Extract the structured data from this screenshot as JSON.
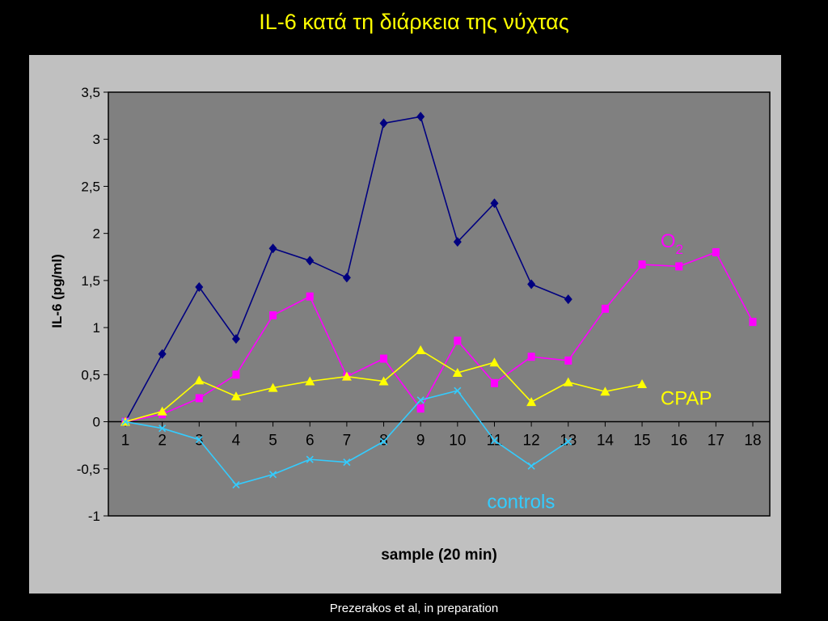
{
  "slide": {
    "title": "IL-6 κατά τη διάρκεια της νύχτας",
    "footer": "Prezerakos et al, in preparation"
  },
  "colors": {
    "background": "#000000",
    "panel": "#C0C0C0",
    "plot_area": "#808080",
    "title": "#FFFF00"
  },
  "chart_data": {
    "type": "line",
    "title": "",
    "xlabel": "sample (20 min)",
    "ylabel": "IL-6 (pg/ml)",
    "x": [
      1,
      2,
      3,
      4,
      5,
      6,
      7,
      8,
      9,
      10,
      11,
      12,
      13,
      14,
      15,
      16,
      17,
      18
    ],
    "xticks": [
      "1",
      "2",
      "3",
      "4",
      "5",
      "6",
      "7",
      "8",
      "9",
      "10",
      "11",
      "12",
      "13",
      "14",
      "15",
      "16",
      "17",
      "18"
    ],
    "ylim": [
      -1,
      3.5
    ],
    "yticks": [
      "3,5",
      "3",
      "2,5",
      "2",
      "1,5",
      "1",
      "0,5",
      "0",
      "-0,5",
      "-1"
    ],
    "ytick_values": [
      3.5,
      3,
      2.5,
      2,
      1.5,
      1,
      0.5,
      0,
      -0.5,
      -1
    ],
    "grid": false,
    "series": [
      {
        "name": "",
        "color": "#000080",
        "marker": "diamond",
        "values": [
          0,
          0.72,
          1.43,
          0.88,
          1.84,
          1.71,
          1.53,
          3.17,
          3.24,
          1.91,
          2.32,
          1.46,
          1.3,
          null,
          null,
          null,
          null,
          null
        ]
      },
      {
        "name": "O2",
        "color": "#FF00FF",
        "marker": "square",
        "values": [
          0,
          0.08,
          0.25,
          0.5,
          1.13,
          1.33,
          0.48,
          0.67,
          0.14,
          0.86,
          0.41,
          0.69,
          0.65,
          1.2,
          1.67,
          1.65,
          1.8,
          1.06
        ]
      },
      {
        "name": "CPAP",
        "color": "#FFFF00",
        "marker": "triangle",
        "values": [
          0,
          0.11,
          0.44,
          0.27,
          0.36,
          0.43,
          0.48,
          0.43,
          0.76,
          0.52,
          0.63,
          0.21,
          0.42,
          0.32,
          0.4,
          null,
          null,
          null
        ]
      },
      {
        "name": "controls",
        "color": "#33CCFF",
        "marker": "x",
        "values": [
          0,
          -0.07,
          -0.19,
          -0.67,
          -0.56,
          -0.4,
          -0.43,
          -0.21,
          0.23,
          0.33,
          -0.2,
          -0.47,
          -0.21,
          null,
          null,
          null,
          null,
          null
        ]
      }
    ],
    "annotations": [
      {
        "text": "O",
        "sub": "2",
        "series": "O2",
        "color": "#FF00FF",
        "at_x": 15.5,
        "at_y": 1.85
      },
      {
        "text": "CPAP",
        "series": "CPAP",
        "color": "#FFFF00",
        "at_x": 15.5,
        "at_y": 0.18
      },
      {
        "text": "controls",
        "series": "controls",
        "color": "#33CCFF",
        "at_x": 10.8,
        "at_y": -0.92
      }
    ]
  }
}
